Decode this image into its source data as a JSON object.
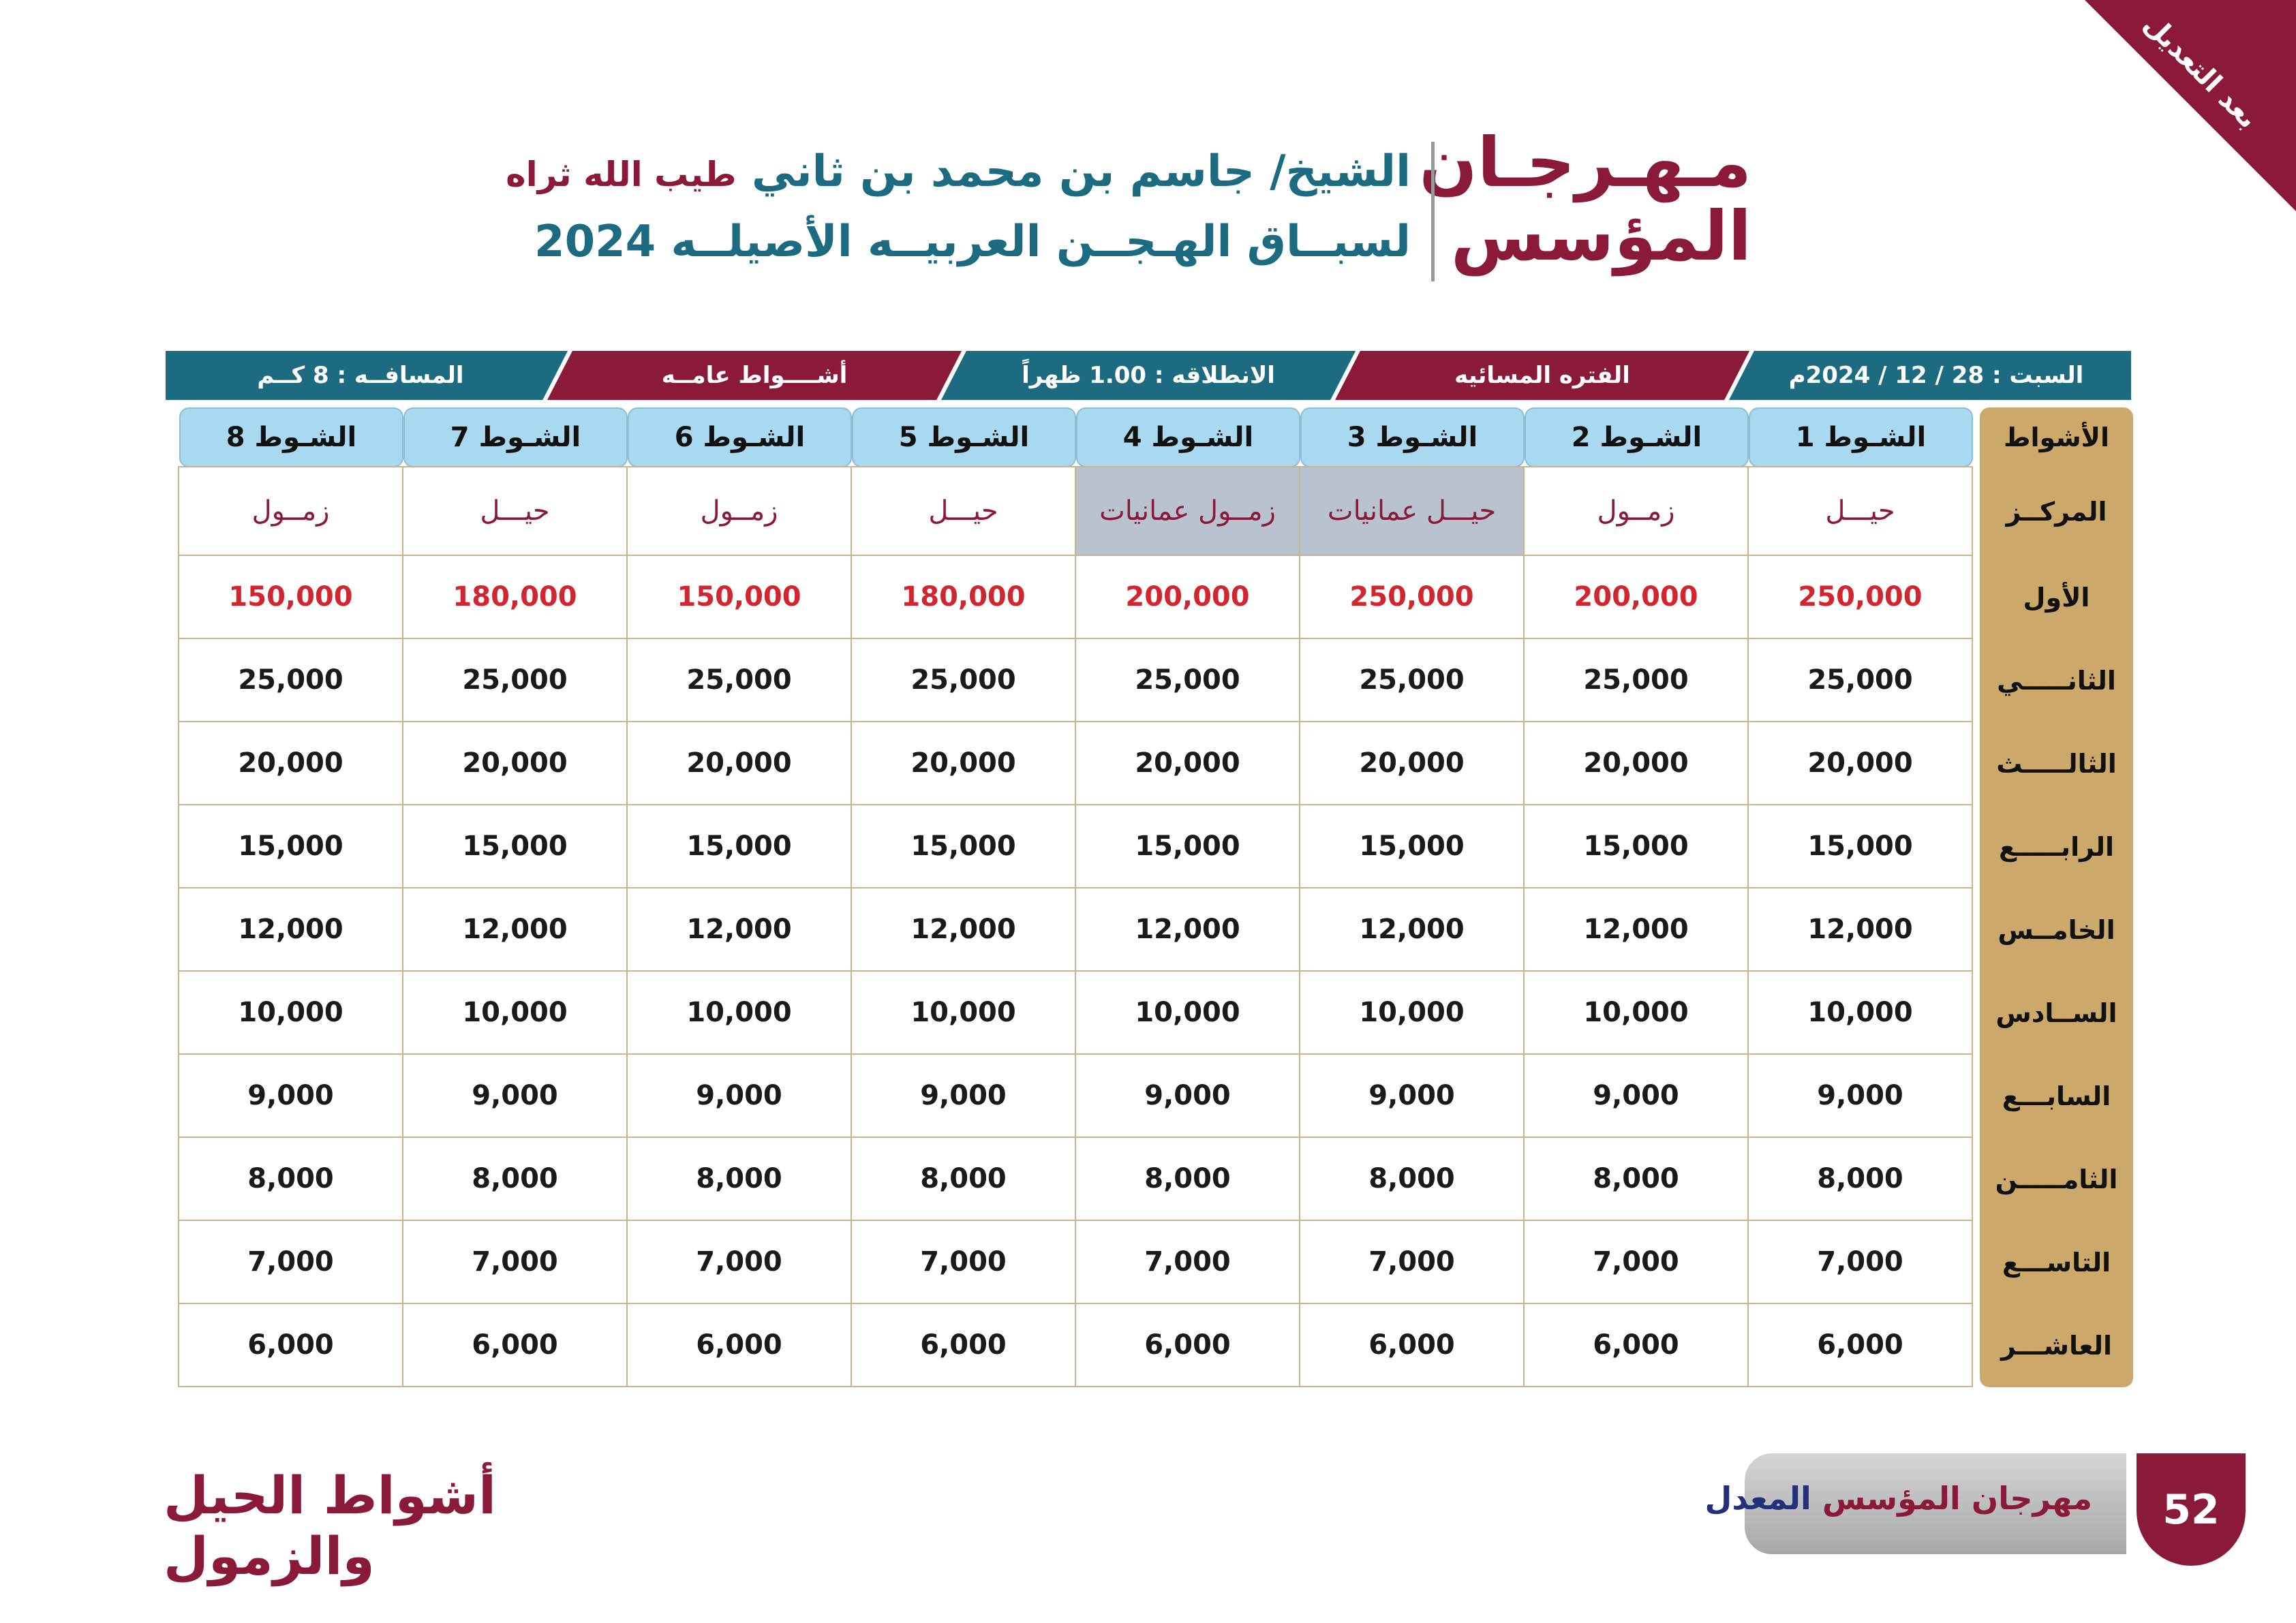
{
  "corner_label": "بعد التعديل",
  "title": {
    "line1": "مـهـرجـان",
    "line2": "المؤسس"
  },
  "subtitle": {
    "line1_main": "الشيخ/ جاسم بن محمد بن ثاني",
    "line1_suffix": "طيب الله ثراه",
    "line2": "لسبــاق الهـجــن العربيــه الأصيلــه 2024"
  },
  "banner": [
    {
      "text": "السبت : 28 / 12 / 2024م",
      "color": "#1c6b80"
    },
    {
      "text": "الفتره المسائيه",
      "color": "#8b1a3a"
    },
    {
      "text": "الانطلاقه :   1.00  ظهراً",
      "color": "#1c6b80"
    },
    {
      "text": "أشــــواط عامــه",
      "color": "#8b1a3a"
    },
    {
      "text": "المسافــه :  8  كــم",
      "color": "#1c6b80"
    }
  ],
  "table": {
    "header_label": "الأشواط",
    "columns": [
      "الشـوط 1",
      "الشـوط 2",
      "الشـوط 3",
      "الشـوط 4",
      "الشـوط 5",
      "الشـوط 6",
      "الشـوط 7",
      "الشـوط 8"
    ],
    "center_label": "المركــز",
    "centers": [
      "حيـــل",
      "زمــول",
      "حيـــل عمانيات",
      "زمــول عمانيات",
      "حيـــل",
      "زمــول",
      "حيـــل",
      "زمــول"
    ],
    "prize_rows": [
      {
        "label": "الأول",
        "values": [
          "250,000",
          "200,000",
          "250,000",
          "200,000",
          "180,000",
          "150,000",
          "180,000",
          "150,000"
        ]
      },
      {
        "label": "الثانـــــي",
        "values": [
          "25,000",
          "25,000",
          "25,000",
          "25,000",
          "25,000",
          "25,000",
          "25,000",
          "25,000"
        ]
      },
      {
        "label": "الثالـــــث",
        "values": [
          "20,000",
          "20,000",
          "20,000",
          "20,000",
          "20,000",
          "20,000",
          "20,000",
          "20,000"
        ]
      },
      {
        "label": "الرابـــــع",
        "values": [
          "15,000",
          "15,000",
          "15,000",
          "15,000",
          "15,000",
          "15,000",
          "15,000",
          "15,000"
        ]
      },
      {
        "label": "الخامــس",
        "values": [
          "12,000",
          "12,000",
          "12,000",
          "12,000",
          "12,000",
          "12,000",
          "12,000",
          "12,000"
        ]
      },
      {
        "label": "الســادس",
        "values": [
          "10,000",
          "10,000",
          "10,000",
          "10,000",
          "10,000",
          "10,000",
          "10,000",
          "10,000"
        ]
      },
      {
        "label": "السابـــع",
        "values": [
          "9,000",
          "9,000",
          "9,000",
          "9,000",
          "9,000",
          "9,000",
          "9,000",
          "9,000"
        ]
      },
      {
        "label": "الثامـــــن",
        "values": [
          "8,000",
          "8,000",
          "8,000",
          "8,000",
          "8,000",
          "8,000",
          "8,000",
          "8,000"
        ]
      },
      {
        "label": "التاســـع",
        "values": [
          "7,000",
          "7,000",
          "7,000",
          "7,000",
          "7,000",
          "7,000",
          "7,000",
          "7,000"
        ]
      },
      {
        "label": "العاشـــر",
        "values": [
          "6,000",
          "6,000",
          "6,000",
          "6,000",
          "6,000",
          "6,000",
          "6,000",
          "6,000"
        ]
      }
    ]
  },
  "footer": {
    "section_title": "أشواط الحيل والزمول",
    "book_title_main": "مهرجان المؤسس",
    "book_title_suffix": "المعدل",
    "page_number": "52"
  }
}
